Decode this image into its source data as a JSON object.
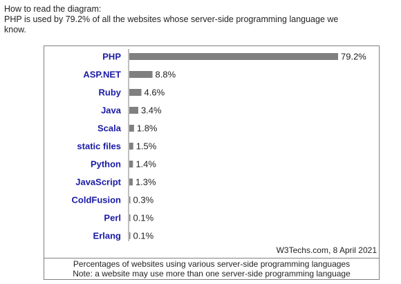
{
  "intro": {
    "line1": "How to read the diagram:",
    "line2": "PHP is used by 79.2% of all the websites whose server-side programming language we",
    "line3": "know."
  },
  "chart_data": {
    "type": "bar",
    "orientation": "horizontal",
    "categories": [
      "PHP",
      "ASP.NET",
      "Ruby",
      "Java",
      "Scala",
      "static files",
      "Python",
      "JavaScript",
      "ColdFusion",
      "Perl",
      "Erlang"
    ],
    "values": [
      79.2,
      8.8,
      4.6,
      3.4,
      1.8,
      1.5,
      1.4,
      1.3,
      0.3,
      0.1,
      0.1
    ],
    "value_labels": [
      "79.2%",
      "8.8%",
      "4.6%",
      "3.4%",
      "1.8%",
      "1.5%",
      "1.4%",
      "1.3%",
      "0.3%",
      "0.1%",
      "0.1%"
    ],
    "unit": "%",
    "xlim": [
      0,
      100
    ],
    "grid": false,
    "source": "W3Techs.com, 8 April 2021",
    "colors": {
      "bar": "#808080",
      "category_label": "#1a1aa6",
      "axis": "#7f7f7f"
    }
  },
  "caption": {
    "line1": "Percentages of websites using various server-side programming languages",
    "line2": "Note: a website may use more than one server-side programming language"
  }
}
